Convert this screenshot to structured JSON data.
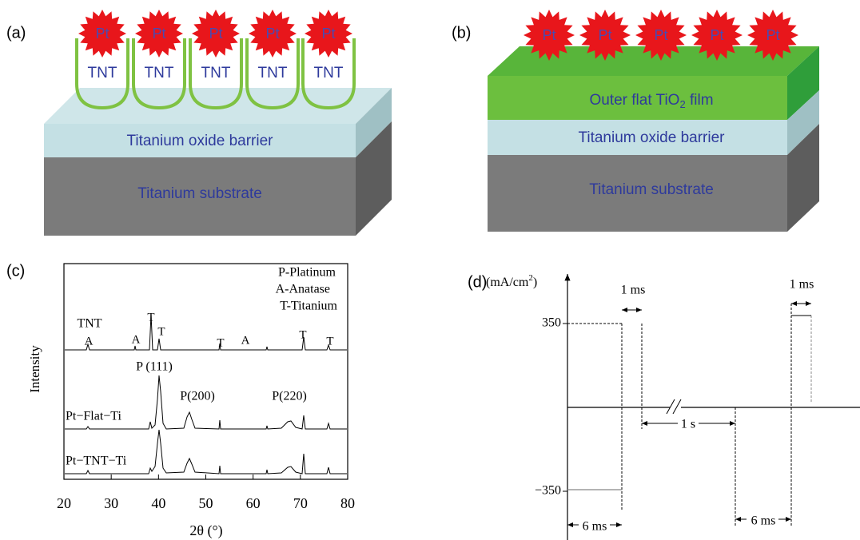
{
  "panel_a": {
    "label": "(a)",
    "particles": [
      "Pt",
      "Pt",
      "Pt",
      "Pt",
      "Pt"
    ],
    "tubes": [
      "TNT",
      "TNT",
      "TNT",
      "TNT",
      "TNT"
    ],
    "barrier": "Titanium oxide barrier",
    "substrate": "Titanium substrate"
  },
  "panel_b": {
    "label": "(b)",
    "particles": [
      "Pt",
      "Pt",
      "Pt",
      "Pt",
      "Pt"
    ],
    "film": {
      "text": "Outer flat TiO",
      "subscript": "2",
      "suffix": " film"
    },
    "barrier": "Titanium oxide barrier",
    "substrate": "Titanium substrate"
  },
  "panel_c": {
    "label": "(c)",
    "legend": [
      "P-Platinum",
      "A-Anatase",
      "T-Titanium"
    ],
    "ylabel": "Intensity",
    "xlabel": "2θ (°)",
    "xlim": [
      20,
      80
    ],
    "xticks": [
      20,
      30,
      40,
      50,
      60,
      70,
      80
    ],
    "samples": [
      "TNT",
      "Pt−Flat−Ti",
      "Pt−TNT−Ti"
    ],
    "peak_labels": [
      "A",
      "A",
      "T",
      "T",
      "T",
      "A",
      "T",
      "T",
      "P (111)",
      "P(200)",
      "P(220)"
    ]
  },
  "panel_d": {
    "label": "(d)",
    "unit": {
      "text": "(mA/cm",
      "superscript": "2",
      "suffix": ")"
    },
    "yticks": [
      350,
      {
        "value": -350,
        "label": "−350"
      }
    ],
    "annotations": [
      "1 ms",
      "1 ms",
      "1 s",
      "6 ms",
      "6 ms"
    ]
  }
}
